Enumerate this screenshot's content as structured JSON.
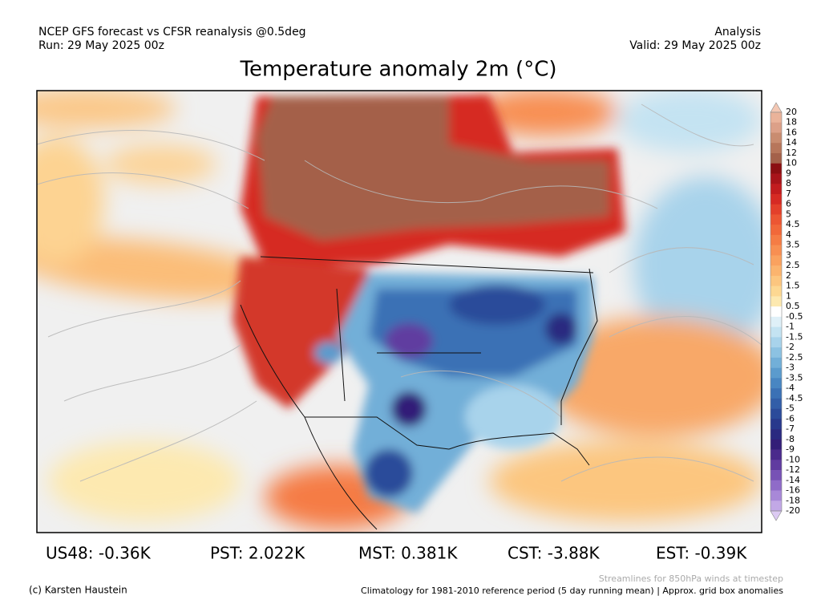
{
  "header": {
    "left_line1": "NCEP GFS forecast vs CFSR reanalysis @0.5deg",
    "left_line2": "Run: 29 May 2025 00z",
    "right_line1": "Analysis",
    "right_line2": "Valid: 29 May 2025 00z",
    "title": "Temperature anomaly 2m (°C)"
  },
  "colorbar": {
    "labels": [
      "20",
      "18",
      "16",
      "14",
      "12",
      "10",
      "9",
      "8",
      "7",
      "6",
      "5",
      "4.5",
      "4",
      "3.5",
      "3",
      "2.5",
      "2",
      "1.5",
      "1",
      "0.5",
      "-0.5",
      "-1",
      "-1.5",
      "-2",
      "-2.5",
      "-3",
      "-3.5",
      "-4",
      "-4.5",
      "-5",
      "-6",
      "-7",
      "-8",
      "-9",
      "-10",
      "-12",
      "-14",
      "-16",
      "-18",
      "-20"
    ],
    "colors": [
      "#f4c8b4",
      "#eab39a",
      "#dca088",
      "#c98c70",
      "#b7765b",
      "#a4614a",
      "#8b0f12",
      "#a8141a",
      "#c21c1f",
      "#d62a24",
      "#e3402b",
      "#ec5633",
      "#f1683a",
      "#f57c45",
      "#f88f52",
      "#faa25f",
      "#fbb46e",
      "#fcc67f",
      "#fdd892",
      "#fde9b0",
      "#ffffff",
      "#dff0f8",
      "#c4e3f2",
      "#a8d3eb",
      "#8cc2e2",
      "#72afd8",
      "#5b9bcd",
      "#4986c2",
      "#3b71b5",
      "#325ea8",
      "#2b4b9a",
      "#28398c",
      "#2a2a80",
      "#331e78",
      "#4a2a8c",
      "#603ca0",
      "#7752b5",
      "#8f6bc8",
      "#a888d8",
      "#c2a8e6",
      "#dccaf2"
    ]
  },
  "stats": [
    "US48: -0.36K",
    "PST: 2.022K",
    "MST: 0.381K",
    "CST: -3.88K",
    "EST: -0.39K"
  ],
  "footer": {
    "credit": "(c) Karsten Haustein",
    "streamlines": "Streamlines for 850hPa winds at timestep",
    "climatology": "Climatology for 1981-2010 reference period (5 day running mean) | Approx. grid box anomalies"
  }
}
